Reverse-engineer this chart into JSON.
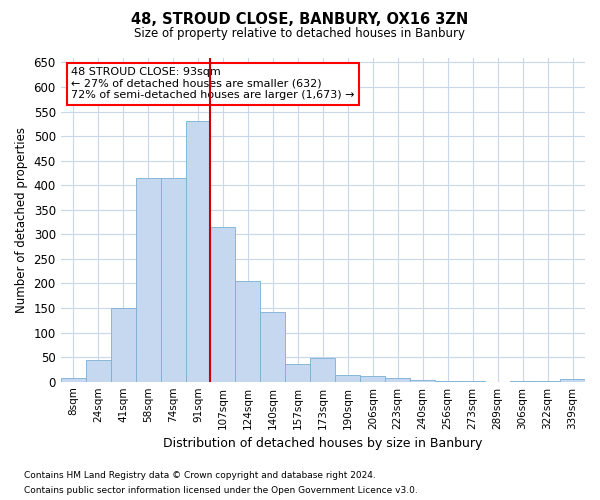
{
  "title1": "48, STROUD CLOSE, BANBURY, OX16 3ZN",
  "title2": "Size of property relative to detached houses in Banbury",
  "xlabel": "Distribution of detached houses by size in Banbury",
  "ylabel": "Number of detached properties",
  "categories": [
    "8sqm",
    "24sqm",
    "41sqm",
    "58sqm",
    "74sqm",
    "91sqm",
    "107sqm",
    "124sqm",
    "140sqm",
    "157sqm",
    "173sqm",
    "190sqm",
    "206sqm",
    "223sqm",
    "240sqm",
    "256sqm",
    "273sqm",
    "289sqm",
    "306sqm",
    "322sqm",
    "339sqm"
  ],
  "values": [
    7,
    45,
    150,
    415,
    415,
    530,
    315,
    205,
    142,
    35,
    48,
    14,
    12,
    8,
    4,
    2,
    2,
    0,
    2,
    2,
    5
  ],
  "bar_color": "#c5d8f0",
  "bar_edge_color": "#7aafd4",
  "vline_color": "#cc0000",
  "annotation_title": "48 STROUD CLOSE: 93sqm",
  "annotation_line1": "← 27% of detached houses are smaller (632)",
  "annotation_line2": "72% of semi-detached houses are larger (1,673) →",
  "background_color": "#ffffff",
  "grid_color": "#c8d8ea",
  "ylim": [
    0,
    660
  ],
  "yticks": [
    0,
    50,
    100,
    150,
    200,
    250,
    300,
    350,
    400,
    450,
    500,
    550,
    600,
    650
  ],
  "footnote1": "Contains HM Land Registry data © Crown copyright and database right 2024.",
  "footnote2": "Contains public sector information licensed under the Open Government Licence v3.0."
}
